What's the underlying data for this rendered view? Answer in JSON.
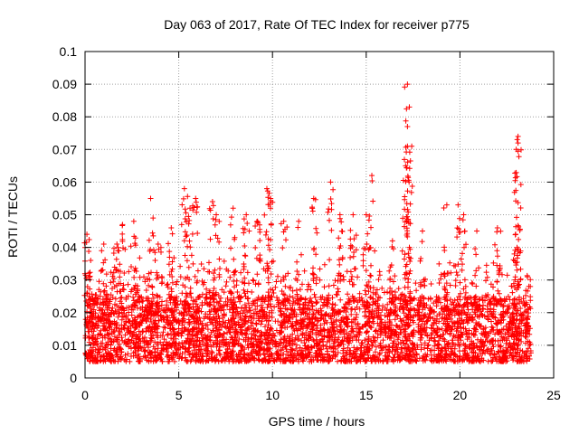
{
  "chart_data": {
    "type": "scatter",
    "title": "Day 063 of 2017, Rate Of TEC Index for receiver p775",
    "xlabel": "GPS time / hours",
    "ylabel": "ROTI / TECUs",
    "xlim": [
      0,
      25
    ],
    "ylim": [
      0,
      0.1
    ],
    "xticks": [
      0,
      5,
      10,
      15,
      20,
      25
    ],
    "xtick_labels": [
      "0",
      "5",
      "10",
      "15",
      "20",
      "25"
    ],
    "yticks": [
      0,
      0.01,
      0.02,
      0.03,
      0.04,
      0.05,
      0.06,
      0.07,
      0.08,
      0.09,
      0.1
    ],
    "ytick_labels": [
      "0",
      "0.01",
      "0.02",
      "0.03",
      "0.04",
      "0.05",
      "0.06",
      "0.07",
      "0.08",
      "0.09",
      "0.1"
    ],
    "grid": true,
    "marker": "+",
    "marker_color": "#ff0000",
    "series": [
      {
        "name": "ROTI",
        "x_range": [
          0,
          23.8
        ],
        "typical_range": [
          0.005,
          0.025
        ],
        "cluster_peaks": [
          {
            "x": 0.1,
            "y": 0.044
          },
          {
            "x": 0.3,
            "y": 0.036
          },
          {
            "x": 1.0,
            "y": 0.041
          },
          {
            "x": 1.7,
            "y": 0.041
          },
          {
            "x": 2.0,
            "y": 0.047
          },
          {
            "x": 2.6,
            "y": 0.048
          },
          {
            "x": 3.5,
            "y": 0.055
          },
          {
            "x": 3.9,
            "y": 0.041
          },
          {
            "x": 4.6,
            "y": 0.046
          },
          {
            "x": 5.3,
            "y": 0.058
          },
          {
            "x": 5.6,
            "y": 0.052
          },
          {
            "x": 5.9,
            "y": 0.055
          },
          {
            "x": 6.8,
            "y": 0.054
          },
          {
            "x": 7.0,
            "y": 0.05
          },
          {
            "x": 7.9,
            "y": 0.052
          },
          {
            "x": 8.6,
            "y": 0.05
          },
          {
            "x": 9.2,
            "y": 0.048
          },
          {
            "x": 9.7,
            "y": 0.058
          },
          {
            "x": 9.9,
            "y": 0.055
          },
          {
            "x": 10.6,
            "y": 0.048
          },
          {
            "x": 11.4,
            "y": 0.048
          },
          {
            "x": 12.2,
            "y": 0.055
          },
          {
            "x": 13.1,
            "y": 0.06
          },
          {
            "x": 13.6,
            "y": 0.05
          },
          {
            "x": 14.3,
            "y": 0.05
          },
          {
            "x": 15.0,
            "y": 0.05
          },
          {
            "x": 15.3,
            "y": 0.062
          },
          {
            "x": 16.4,
            "y": 0.042
          },
          {
            "x": 17.2,
            "y": 0.09
          },
          {
            "x": 17.3,
            "y": 0.083
          },
          {
            "x": 17.2,
            "y": 0.077
          },
          {
            "x": 17.2,
            "y": 0.071
          },
          {
            "x": 17.1,
            "y": 0.065
          },
          {
            "x": 18.0,
            "y": 0.045
          },
          {
            "x": 19.3,
            "y": 0.053
          },
          {
            "x": 19.9,
            "y": 0.053
          },
          {
            "x": 20.2,
            "y": 0.05
          },
          {
            "x": 20.9,
            "y": 0.045
          },
          {
            "x": 22.0,
            "y": 0.046
          },
          {
            "x": 22.9,
            "y": 0.038
          },
          {
            "x": 23.1,
            "y": 0.074
          },
          {
            "x": 23.1,
            "y": 0.072
          },
          {
            "x": 23.0,
            "y": 0.07
          },
          {
            "x": 23.6,
            "y": 0.031
          }
        ]
      }
    ]
  }
}
